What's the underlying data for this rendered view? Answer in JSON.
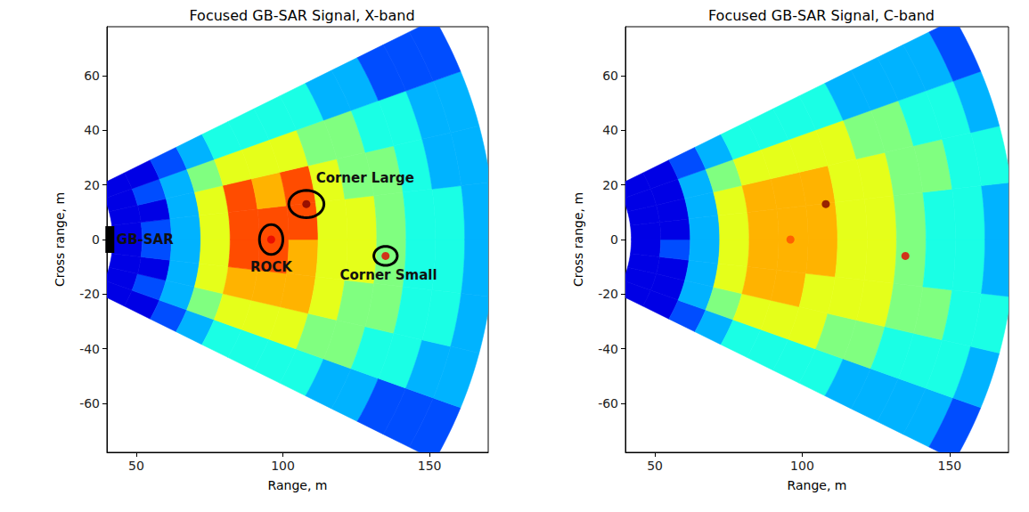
{
  "chart_data": [
    {
      "type": "heatmap",
      "title": "Focused GB-SAR Signal, X-band",
      "x_label": "Range, m",
      "y_label": "Cross range, m",
      "xlim": [
        40,
        170
      ],
      "xticks": [
        50,
        100,
        150
      ],
      "ylim": [
        -78,
        78
      ],
      "yticks": [
        -60,
        -40,
        -20,
        0,
        20,
        40,
        60
      ],
      "grid": false,
      "range_bins": [
        42,
        52,
        62,
        72,
        82,
        92,
        102,
        112,
        122,
        132,
        142,
        152,
        162,
        172
      ],
      "angle_bins": [
        -28,
        -21,
        -14,
        -7,
        0,
        7,
        14,
        21,
        28
      ],
      "color_range": [
        0,
        10
      ],
      "cells": [
        [
          1,
          1,
          1,
          1,
          1,
          1,
          1,
          1
        ],
        [
          1,
          2,
          1,
          2,
          2,
          1,
          2,
          1
        ],
        [
          2,
          3,
          3,
          3,
          3,
          3,
          3,
          2
        ],
        [
          3,
          5,
          6,
          6,
          6,
          6,
          5,
          3
        ],
        [
          4,
          6,
          7,
          8,
          8,
          8,
          6,
          4
        ],
        [
          4,
          6,
          7,
          8,
          8,
          7,
          6,
          4
        ],
        [
          4,
          6,
          7,
          7,
          8,
          8,
          6,
          4
        ],
        [
          4,
          5,
          6,
          6,
          6,
          6,
          5,
          4
        ],
        [
          3,
          5,
          5,
          6,
          6,
          5,
          5,
          3
        ],
        [
          3,
          4,
          5,
          5,
          5,
          5,
          4,
          3
        ],
        [
          2,
          4,
          4,
          4,
          4,
          4,
          4,
          2
        ],
        [
          2,
          3,
          4,
          4,
          4,
          3,
          3,
          2
        ],
        [
          2,
          3,
          3,
          3,
          3,
          3,
          3,
          2
        ]
      ],
      "targets": {
        "x": [
          108,
          96,
          135
        ],
        "y": [
          13,
          0,
          -6
        ],
        "values": [
          10,
          9,
          9
        ]
      },
      "markers": [
        {
          "x": 108,
          "y": 13,
          "rx": 6,
          "ry": 5
        },
        {
          "x": 96,
          "y": 0,
          "rx": 4,
          "ry": 5.5
        },
        {
          "x": 135,
          "y": -6,
          "rx": 4,
          "ry": 3.5
        }
      ],
      "annotations": [
        {
          "text": "Corner Large",
          "x": 128,
          "y": 22.5
        },
        {
          "text": "ROCK",
          "x": 96,
          "y": -10
        },
        {
          "text": "Corner Small",
          "x": 136,
          "y": -13
        },
        {
          "text": "GB-SAR",
          "x": 53,
          "y": 0
        }
      ],
      "sensor": [
        41,
        0
      ]
    },
    {
      "type": "heatmap",
      "title": "Focused GB-SAR Signal, C-band",
      "x_label": "Range, m",
      "y_label": "Cross range, m",
      "xlim": [
        40,
        170
      ],
      "xticks": [
        50,
        100,
        150
      ],
      "ylim": [
        -78,
        78
      ],
      "yticks": [
        -60,
        -40,
        -20,
        0,
        20,
        40,
        60
      ],
      "grid": false,
      "range_bins": [
        42,
        52,
        62,
        72,
        82,
        92,
        102,
        112,
        122,
        132,
        142,
        152,
        162,
        172
      ],
      "angle_bins": [
        -28,
        -21,
        -14,
        -7,
        0,
        7,
        14,
        21,
        28
      ],
      "color_range": [
        0,
        10
      ],
      "cells": [
        [
          1,
          1,
          1,
          1,
          1,
          1,
          1,
          1
        ],
        [
          1,
          1,
          1,
          2,
          1,
          1,
          1,
          1
        ],
        [
          2,
          3,
          3,
          3,
          3,
          3,
          3,
          2
        ],
        [
          3,
          5,
          6,
          6,
          6,
          6,
          5,
          3
        ],
        [
          4,
          6,
          7,
          7,
          7,
          7,
          6,
          4
        ],
        [
          4,
          6,
          7,
          7,
          7,
          7,
          6,
          4
        ],
        [
          4,
          6,
          6,
          7,
          7,
          7,
          6,
          4
        ],
        [
          4,
          5,
          6,
          6,
          6,
          6,
          6,
          4
        ],
        [
          3,
          5,
          6,
          6,
          6,
          6,
          5,
          3
        ],
        [
          3,
          4,
          5,
          5,
          5,
          5,
          5,
          3
        ],
        [
          3,
          4,
          5,
          4,
          4,
          5,
          4,
          3
        ],
        [
          3,
          4,
          4,
          4,
          4,
          4,
          4,
          3
        ],
        [
          2,
          3,
          4,
          3,
          3,
          4,
          3,
          2
        ]
      ],
      "targets": {
        "x": [
          108,
          96,
          135
        ],
        "y": [
          13,
          0,
          -6
        ],
        "values": [
          10,
          8,
          9
        ]
      }
    }
  ]
}
